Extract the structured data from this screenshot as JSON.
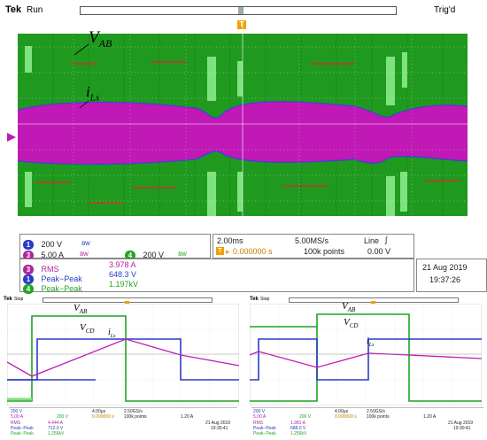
{
  "top_scope": {
    "brand": "Tek",
    "status": "Run",
    "trigger_status": "Trig'd",
    "trigger_marker": "T",
    "labels": {
      "vab_main": "V",
      "vab_sub": "AB",
      "ils_main": "i",
      "ils_sub": "Ls"
    },
    "channels": [
      {
        "num": "1",
        "scale": "200 V",
        "color": "#2b3bc9"
      },
      {
        "num": "3",
        "scale": "5.00 A",
        "color": "#b0269a"
      },
      {
        "num": "4",
        "scale": "200 V",
        "color": "#24a524"
      }
    ],
    "bw_glyph": "ᴮᵂ",
    "timebase": "2.00ms",
    "sample_rate": "5.00MS/s",
    "trigger_type": "Line",
    "trigger_slope": "∫",
    "trigger_offset": "0.000000 s",
    "record_length": "100k points",
    "trigger_level": "0.00 V",
    "measurements": [
      {
        "num": "3",
        "name": "RMS",
        "value": "3.978 A",
        "color": "#b0269a"
      },
      {
        "num": "1",
        "name": "Peak−Peak",
        "value": "648.3 V",
        "color": "#2b3bc9"
      },
      {
        "num": "4",
        "name": "Peak−Peak",
        "value": "1.197kV",
        "color": "#24a524"
      }
    ],
    "date": "21 Aug 2019",
    "time": "19:37:26"
  },
  "left_scope": {
    "brand": "Tek",
    "status": "Stop",
    "labels": {
      "vab_main": "V",
      "vab_sub": "AB",
      "vcd_main": "V",
      "vcd_sub": "CD",
      "ils_main": "i",
      "ils_sub": "Ls"
    },
    "channels": [
      {
        "num": "1",
        "scale": "200 V",
        "color": "#2b3bc9"
      },
      {
        "num": "3",
        "scale": "5.00 A",
        "color": "#b0269a"
      },
      {
        "num": "4",
        "scale": "200 V",
        "color": "#24a524"
      }
    ],
    "timebase": "4.00μs",
    "sample_rate": "2.50GS/s",
    "trigger_offset": "0.000000 s",
    "record_length": "100k points",
    "trigger_level": "1.20 A",
    "measurements": [
      {
        "num": "3",
        "name": "RMS",
        "value": "4.444 A",
        "color": "#b0269a"
      },
      {
        "num": "1",
        "name": "Peak−Peak",
        "value": "712.0 V",
        "color": "#2b3bc9"
      },
      {
        "num": "4",
        "name": "Peak−Peak",
        "value": "1.256kV",
        "color": "#24a524"
      }
    ],
    "date": "21 Aug 2019",
    "time": "19:30:41"
  },
  "right_scope": {
    "brand": "Tek",
    "status": "Stop",
    "labels": {
      "vab_main": "V",
      "vab_sub": "AB",
      "vcd_main": "V",
      "vcd_sub": "CD",
      "ils_main": "i",
      "ils_sub": "Ls"
    },
    "channels": [
      {
        "num": "1",
        "scale": "200 V",
        "color": "#2b3bc9"
      },
      {
        "num": "3",
        "scale": "5.00 A",
        "color": "#b0269a"
      },
      {
        "num": "4",
        "scale": "200 V",
        "color": "#24a524"
      }
    ],
    "timebase": "4.00μs",
    "sample_rate": "2.50GS/s",
    "trigger_offset": "0.000000 s",
    "record_length": "100k points",
    "trigger_level": "1.20 A",
    "measurements": [
      {
        "num": "3",
        "name": "RMS",
        "value": "1.981 A",
        "color": "#b0269a"
      },
      {
        "num": "1",
        "name": "Peak−Peak",
        "value": "688.0 V",
        "color": "#2b3bc9"
      },
      {
        "num": "4",
        "name": "Peak−Peak",
        "value": "1.256kV",
        "color": "#24a524"
      }
    ],
    "date": "21 Aug 2019",
    "time": "19:30:41"
  },
  "colors": {
    "ch1": "#2b3bc9",
    "ch3": "#c019b5",
    "ch4": "#1fa31f",
    "ch4_light": "#7fe27f",
    "grid_bg": "#ffffff",
    "trigger": "#f0a000"
  }
}
